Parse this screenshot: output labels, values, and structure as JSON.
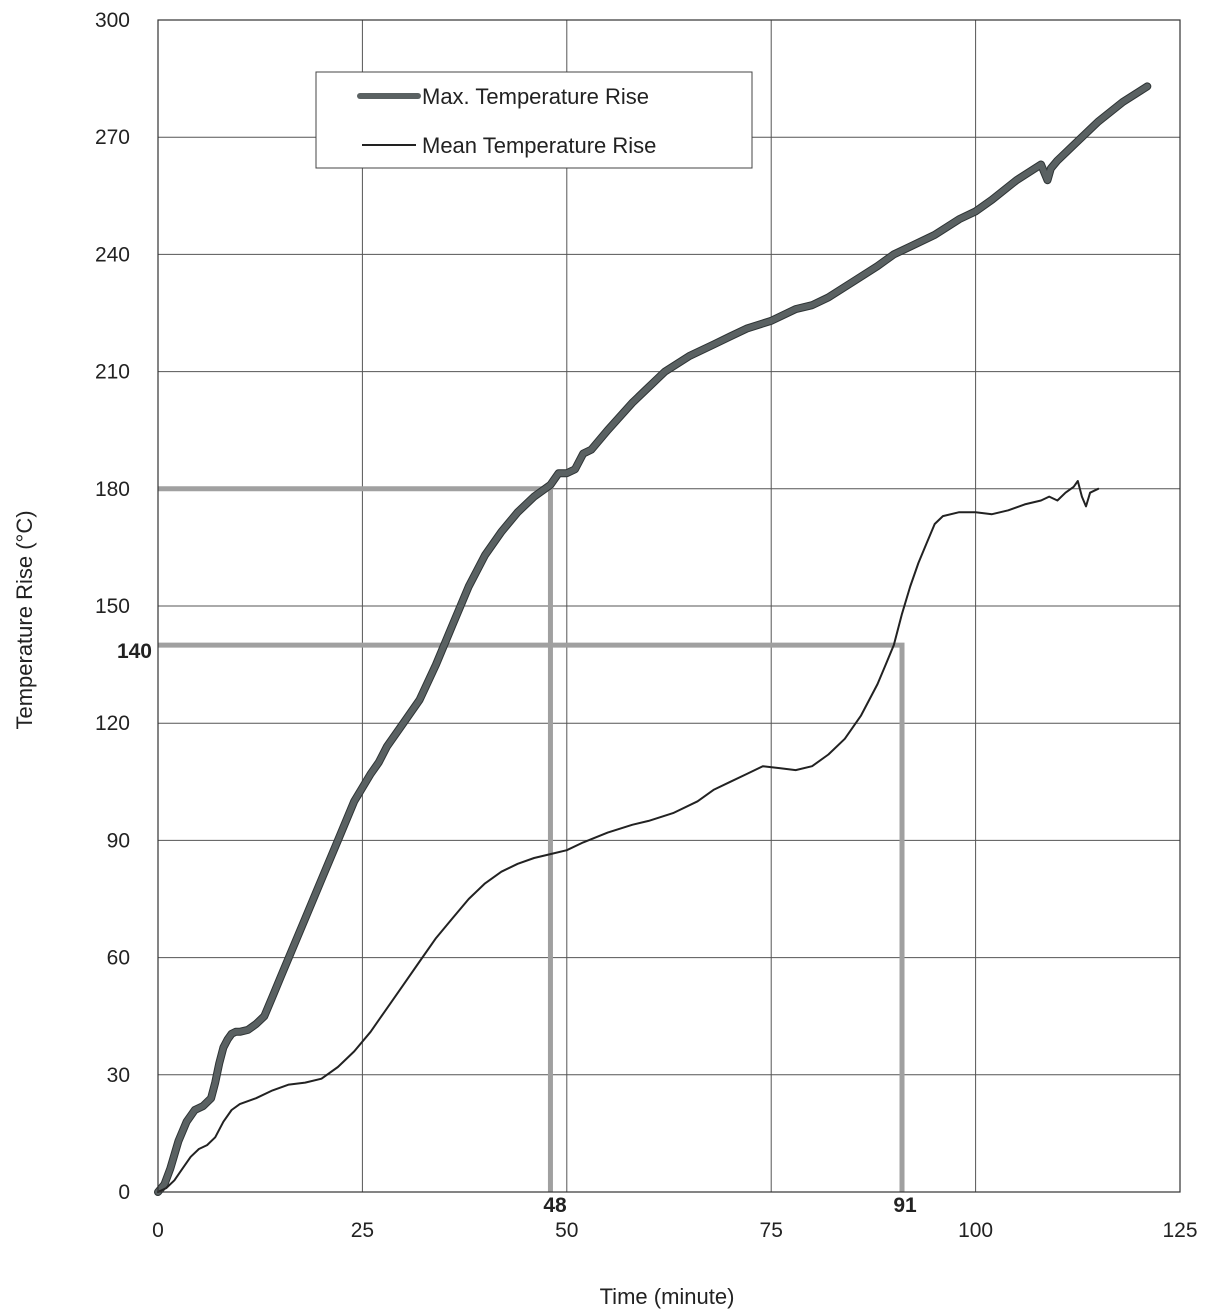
{
  "chart_data": {
    "type": "line",
    "title": "",
    "xlabel": "Time (minute)",
    "ylabel": "Temperature Rise (°C)",
    "xlim": [
      0,
      125
    ],
    "ylim": [
      0,
      300
    ],
    "xticks": [
      0,
      25,
      50,
      75,
      100,
      125
    ],
    "yticks": [
      0,
      30,
      60,
      90,
      120,
      150,
      180,
      210,
      240,
      270,
      300
    ],
    "grid": true,
    "legend": {
      "position": "top-left"
    },
    "series": [
      {
        "name": "Max. Temperature Rise",
        "color": "#5a6162",
        "x": [
          0,
          0.8,
          1.5,
          2.5,
          3.5,
          4.5,
          5.5,
          6.5,
          7,
          7.5,
          8,
          8.5,
          9,
          9.5,
          10,
          11,
          12,
          13,
          14,
          15,
          16,
          18,
          20,
          22,
          24,
          26,
          27,
          28,
          30,
          32,
          34,
          36,
          38,
          40,
          42,
          44,
          46,
          48,
          49,
          50,
          51,
          52,
          53,
          55,
          58,
          60,
          62,
          65,
          68,
          70,
          72,
          75,
          78,
          80,
          82,
          85,
          88,
          90,
          92,
          95,
          98,
          100,
          102,
          105,
          108,
          108.8,
          109.2,
          110,
          112,
          115,
          118,
          121
        ],
        "y": [
          0,
          2,
          6,
          13,
          18,
          21,
          22,
          24,
          28,
          33,
          37,
          39,
          40.5,
          41,
          41,
          41.5,
          43,
          45,
          50,
          55,
          60,
          70,
          80,
          90,
          100,
          107,
          110,
          114,
          120,
          126,
          135,
          145,
          155,
          163,
          169,
          174,
          178,
          181,
          184,
          184,
          185,
          189,
          190,
          195,
          202,
          206,
          210,
          214,
          217,
          219,
          221,
          223,
          226,
          227,
          229,
          233,
          237,
          240,
          242,
          245,
          249,
          251,
          254,
          259,
          263,
          259,
          262,
          264,
          268,
          274,
          279,
          283
        ]
      },
      {
        "name": "Mean Temperature Rise",
        "color": "#222222",
        "x": [
          0,
          1,
          2,
          3,
          4,
          5,
          6,
          7,
          8,
          9,
          10,
          12,
          14,
          16,
          18,
          20,
          22,
          24,
          26,
          28,
          30,
          32,
          34,
          36,
          38,
          40,
          42,
          44,
          46,
          48,
          50,
          52,
          55,
          58,
          60,
          63,
          66,
          68,
          70,
          72,
          74,
          76,
          78,
          80,
          82,
          84,
          86,
          88,
          89,
          90,
          91,
          92,
          93,
          94,
          95,
          96,
          98,
          100,
          102,
          104,
          106,
          108,
          109,
          110,
          111,
          112,
          112.5,
          113,
          113.5,
          114,
          115
        ],
        "y": [
          0,
          1,
          3,
          6,
          9,
          11,
          12,
          14,
          18,
          21,
          22.5,
          24,
          26,
          27.5,
          28,
          29,
          32,
          36,
          41,
          47,
          53,
          59,
          65,
          70,
          75,
          79,
          82,
          84,
          85.5,
          86.5,
          87.5,
          89.5,
          92,
          94,
          95,
          97,
          100,
          103,
          105,
          107,
          109,
          108.5,
          108,
          109,
          112,
          116,
          122,
          130,
          135,
          140,
          148,
          155,
          161,
          166,
          171,
          173,
          174,
          174,
          173.5,
          174.5,
          176,
          177,
          178,
          177,
          179,
          180.5,
          182,
          178,
          175.5,
          179,
          180
        ]
      }
    ],
    "reference_lines": [
      {
        "value_x": 48,
        "value_y": 180,
        "color": "#a0a0a0"
      },
      {
        "value_x": 91,
        "value_y": 140,
        "color": "#a0a0a0"
      }
    ],
    "annotations": {
      "x48": "48",
      "x91": "91",
      "y140": "140"
    }
  }
}
